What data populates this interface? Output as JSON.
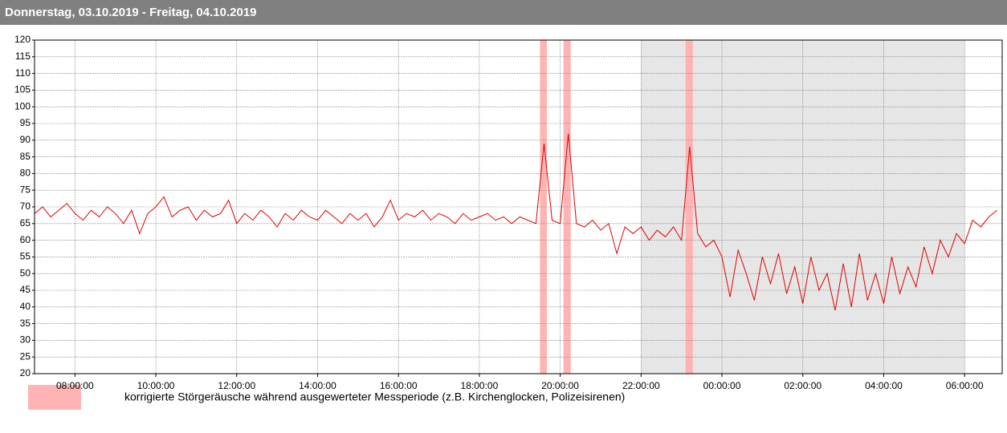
{
  "chart_data": {
    "type": "line",
    "title": "Donnerstag, 03.10.2019 - Freitag, 04.10.2019",
    "legend_text": "korrigierte Störgeräusche während ausgewerteter Messperiode (z.B. Kirchenglocken, Polizeisirenen)",
    "color": "#e00000",
    "band_color": "#ffb3b3",
    "night_color": "#e6e6e6",
    "grid": true,
    "xlim": [
      7.0,
      30.93
    ],
    "ylim": [
      20,
      120
    ],
    "yticks": [
      20,
      25,
      30,
      35,
      40,
      45,
      50,
      55,
      60,
      65,
      70,
      75,
      80,
      85,
      90,
      95,
      100,
      105,
      110,
      115,
      120
    ],
    "xticks": [
      {
        "value": 8,
        "label": "08:00:00"
      },
      {
        "value": 10,
        "label": "10:00:00"
      },
      {
        "value": 12,
        "label": "12:00:00"
      },
      {
        "value": 14,
        "label": "14:00:00"
      },
      {
        "value": 16,
        "label": "16:00:00"
      },
      {
        "value": 18,
        "label": "18:00:00"
      },
      {
        "value": 20,
        "label": "20:00:00"
      },
      {
        "value": 22,
        "label": "22:00:00"
      },
      {
        "value": 24,
        "label": "00:00:00"
      },
      {
        "value": 26,
        "label": "02:00:00"
      },
      {
        "value": 28,
        "label": "04:00:00"
      },
      {
        "value": 30,
        "label": "06:00:00"
      }
    ],
    "night": [
      22,
      30
    ],
    "bands": [
      [
        19.5,
        19.67
      ],
      [
        20.08,
        20.26
      ],
      [
        23.1,
        23.28
      ]
    ],
    "x": [
      7.0,
      7.2,
      7.4,
      7.6,
      7.8,
      8.0,
      8.2,
      8.4,
      8.6,
      8.8,
      9.0,
      9.2,
      9.4,
      9.6,
      9.8,
      10.0,
      10.2,
      10.4,
      10.6,
      10.8,
      11.0,
      11.2,
      11.4,
      11.6,
      11.8,
      12.0,
      12.2,
      12.4,
      12.6,
      12.8,
      13.0,
      13.2,
      13.4,
      13.6,
      13.8,
      14.0,
      14.2,
      14.4,
      14.6,
      14.8,
      15.0,
      15.2,
      15.4,
      15.6,
      15.8,
      16.0,
      16.2,
      16.4,
      16.6,
      16.8,
      17.0,
      17.2,
      17.4,
      17.6,
      17.8,
      18.0,
      18.2,
      18.4,
      18.6,
      18.8,
      19.0,
      19.2,
      19.4,
      19.6,
      19.8,
      20.0,
      20.2,
      20.4,
      20.6,
      20.8,
      21.0,
      21.2,
      21.4,
      21.6,
      21.8,
      22.0,
      22.2,
      22.4,
      22.6,
      22.8,
      23.0,
      23.2,
      23.4,
      23.6,
      23.8,
      24.0,
      24.2,
      24.4,
      24.6,
      24.8,
      25.0,
      25.2,
      25.4,
      25.6,
      25.8,
      26.0,
      26.2,
      26.4,
      26.6,
      26.8,
      27.0,
      27.2,
      27.4,
      27.6,
      27.8,
      28.0,
      28.2,
      28.4,
      28.6,
      28.8,
      29.0,
      29.2,
      29.4,
      29.6,
      29.8,
      30.0,
      30.2,
      30.4,
      30.6,
      30.8
    ],
    "values": [
      68,
      70,
      67,
      69,
      71,
      68,
      66,
      69,
      67,
      70,
      68,
      65,
      69,
      62,
      68,
      70,
      73,
      67,
      69,
      70,
      66,
      69,
      67,
      68,
      72,
      65,
      68,
      66,
      69,
      67,
      64,
      68,
      66,
      69,
      67,
      66,
      69,
      67,
      65,
      68,
      66,
      68,
      64,
      67,
      72,
      66,
      68,
      67,
      69,
      66,
      68,
      67,
      65,
      68,
      66,
      67,
      68,
      66,
      67,
      65,
      67,
      66,
      65,
      89,
      66,
      65,
      92,
      65,
      64,
      66,
      63,
      65,
      56,
      64,
      62,
      64,
      60,
      63,
      61,
      64,
      60,
      88,
      62,
      58,
      60,
      55,
      43,
      57,
      50,
      42,
      55,
      47,
      56,
      44,
      52,
      41,
      55,
      45,
      50,
      39,
      53,
      40,
      56,
      42,
      50,
      41,
      55,
      44,
      52,
      46,
      58,
      50,
      60,
      55,
      62,
      59,
      66,
      64,
      67,
      69
    ]
  }
}
